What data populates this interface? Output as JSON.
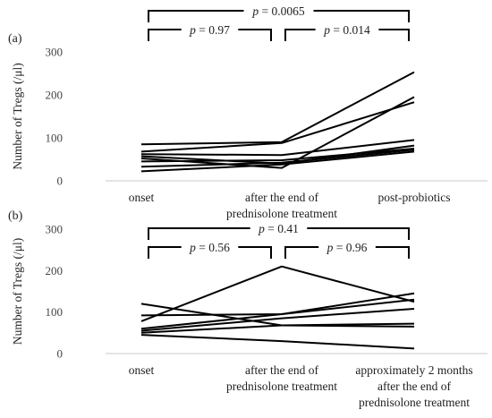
{
  "chart_data": [
    {
      "type": "line",
      "panel_label": "(a)",
      "ylabel": "Number of Tregs (/μl)",
      "ylim": [
        0,
        300
      ],
      "yticks": [
        "0",
        "100",
        "200",
        "300"
      ],
      "categories": [
        [
          "onset"
        ],
        [
          "after the end of",
          "prednisolone treatment"
        ],
        [
          "post-probiotics"
        ]
      ],
      "subjects": [
        {
          "values": [
            85,
            90,
            253
          ]
        },
        {
          "values": [
            68,
            88,
            183
          ]
        },
        {
          "values": [
            62,
            60,
            95
          ]
        },
        {
          "values": [
            57,
            40,
            82
          ]
        },
        {
          "values": [
            52,
            30,
            195
          ]
        },
        {
          "values": [
            45,
            48,
            75
          ]
        },
        {
          "values": [
            33,
            42,
            72
          ]
        },
        {
          "values": [
            22,
            38,
            68
          ]
        }
      ],
      "comparisons": [
        {
          "from": 0,
          "to": 2,
          "label": "p = 0.0065",
          "level": 2
        },
        {
          "from": 0,
          "to": 1,
          "label": "p = 0.97",
          "level": 1
        },
        {
          "from": 1,
          "to": 2,
          "label": "p = 0.014",
          "level": 1
        }
      ]
    },
    {
      "type": "line",
      "panel_label": "(b)",
      "ylabel": "Number of Tregs (/μl)",
      "ylim": [
        0,
        300
      ],
      "yticks": [
        "0",
        "100",
        "200",
        "300"
      ],
      "categories": [
        [
          "onset"
        ],
        [
          "after the end of",
          "prednisolone treatment"
        ],
        [
          "approximately 2 months",
          "after the end of",
          "prednisolone treatment"
        ]
      ],
      "subjects": [
        {
          "values": [
            120,
            68,
            65
          ]
        },
        {
          "values": [
            78,
            210,
            125
          ]
        },
        {
          "values": [
            92,
            95,
            145
          ]
        },
        {
          "values": [
            60,
            95,
            130
          ]
        },
        {
          "values": [
            55,
            85,
            108
          ]
        },
        {
          "values": [
            50,
            68,
            72
          ]
        },
        {
          "values": [
            45,
            30,
            12
          ]
        }
      ],
      "comparisons": [
        {
          "from": 0,
          "to": 2,
          "label": "p = 0.41",
          "level": 2
        },
        {
          "from": 0,
          "to": 1,
          "label": "p = 0.56",
          "level": 1
        },
        {
          "from": 1,
          "to": 2,
          "label": "p = 0.96",
          "level": 1
        }
      ]
    }
  ]
}
